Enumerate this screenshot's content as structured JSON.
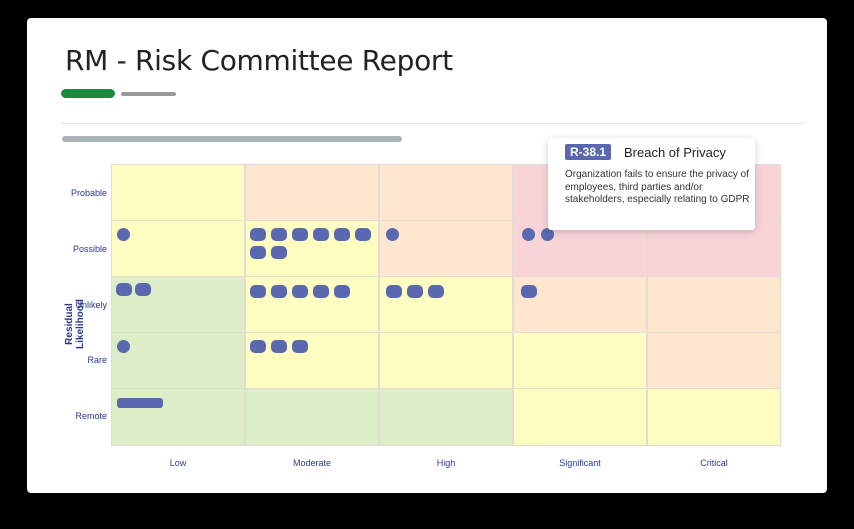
{
  "report": {
    "title": "RM - Risk Committee Report",
    "y_axis_label": "Residual Likelihood",
    "likelihood_rows": [
      "Probable",
      "Possible",
      "Unlikely",
      "Rare",
      "Remote"
    ],
    "impact_columns": [
      "Low",
      "Moderate",
      "High",
      "Significant",
      "Critical"
    ]
  },
  "heatmap": {
    "colors": {
      "green": "#dcedc7",
      "yellow": "#fdfdc2",
      "peach": "#fde8cf",
      "pink": "#f8d4d9",
      "chip": "#5a68b0"
    },
    "cells": [
      [
        "yellow",
        "peach",
        "peach",
        "pink",
        "pink"
      ],
      [
        "yellow",
        "yellow",
        "peach",
        "pink",
        "pink"
      ],
      [
        "green",
        "yellow",
        "yellow",
        "peach",
        "peach"
      ],
      [
        "green",
        "yellow",
        "yellow",
        "yellow",
        "peach"
      ],
      [
        "green",
        "green",
        "green",
        "yellow",
        "yellow"
      ]
    ],
    "risk_counts": [
      [
        0,
        0,
        0,
        0,
        0
      ],
      [
        1,
        8,
        1,
        2,
        0
      ],
      [
        2,
        5,
        3,
        1,
        0
      ],
      [
        1,
        3,
        0,
        0,
        0
      ],
      [
        1,
        0,
        0,
        0,
        0
      ]
    ]
  },
  "tooltip": {
    "risk_id": "R-38.1",
    "risk_title": "Breach of Privacy",
    "description": "Organization fails to ensure the privacy of employees, third parties and/or stakeholders, especially relating to GDPR"
  }
}
